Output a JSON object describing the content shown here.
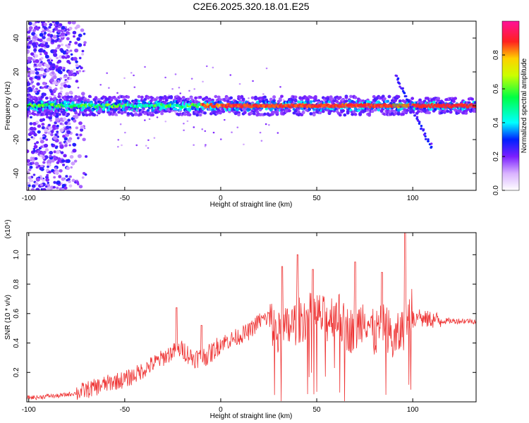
{
  "title": "C2E6.2025.320.18.01.E25",
  "chart_data": [
    {
      "type": "heatmap",
      "xlabel": "Height of straight line (km)",
      "ylabel": "Frequency (Hz)",
      "xlim": [
        -101,
        133
      ],
      "ylim": [
        -50,
        50
      ],
      "x_ticks": [
        "-100",
        "-50",
        "0",
        "50",
        "100"
      ],
      "y_ticks": [
        "-40",
        "-20",
        "0",
        "20",
        "40"
      ],
      "colorbar": {
        "label": "Normalized spectral amplitude",
        "ticks": [
          "0.0",
          "0.2",
          "0.4",
          "0.6",
          "0.8"
        ],
        "range": [
          0,
          1
        ]
      },
      "grid": false,
      "features": [
        {
          "kind": "horizontal band centered at 0 Hz",
          "x_range": [
            -101,
            133
          ]
        },
        {
          "kind": "broadband scatter",
          "x_range": [
            -101,
            -72
          ]
        },
        {
          "kind": "diagonal streak",
          "from": [
            91,
            18
          ],
          "to": [
            110,
            -25
          ]
        }
      ]
    },
    {
      "type": "line",
      "xlabel": "Height of straight line (km)",
      "ylabel": "SNR (10 * v/v)",
      "y_multiplier": "(x10⁴)",
      "xlim": [
        -101,
        133
      ],
      "ylim": [
        0,
        1.15
      ],
      "x_ticks": [
        "-100",
        "-50",
        "0",
        "50",
        "100"
      ],
      "y_ticks": [
        "0.2",
        "0.4",
        "0.6",
        "0.8",
        "1.0"
      ],
      "grid": false,
      "series": [
        {
          "color": "#ee3333",
          "x": [
            -101,
            -95,
            -90,
            -85,
            -80,
            -75,
            -70,
            -65,
            -60,
            -55,
            -50,
            -45,
            -40,
            -35,
            -30,
            -25,
            -20,
            -15,
            -10,
            -5,
            0,
            5,
            10,
            15,
            20,
            25,
            30,
            35,
            40,
            45,
            50,
            55,
            60,
            65,
            70,
            75,
            80,
            85,
            90,
            95,
            100,
            105,
            110,
            115,
            120,
            125,
            133
          ],
          "y": [
            0.03,
            0.03,
            0.04,
            0.04,
            0.05,
            0.06,
            0.08,
            0.1,
            0.12,
            0.14,
            0.15,
            0.18,
            0.22,
            0.26,
            0.3,
            0.34,
            0.36,
            0.3,
            0.3,
            0.33,
            0.4,
            0.42,
            0.45,
            0.48,
            0.55,
            0.57,
            0.45,
            0.5,
            0.55,
            0.58,
            0.6,
            0.55,
            0.62,
            0.5,
            0.48,
            0.6,
            0.45,
            0.55,
            0.4,
            0.5,
            0.65,
            0.56,
            0.56,
            0.55,
            0.55,
            0.55,
            0.55
          ]
        }
      ]
    }
  ]
}
